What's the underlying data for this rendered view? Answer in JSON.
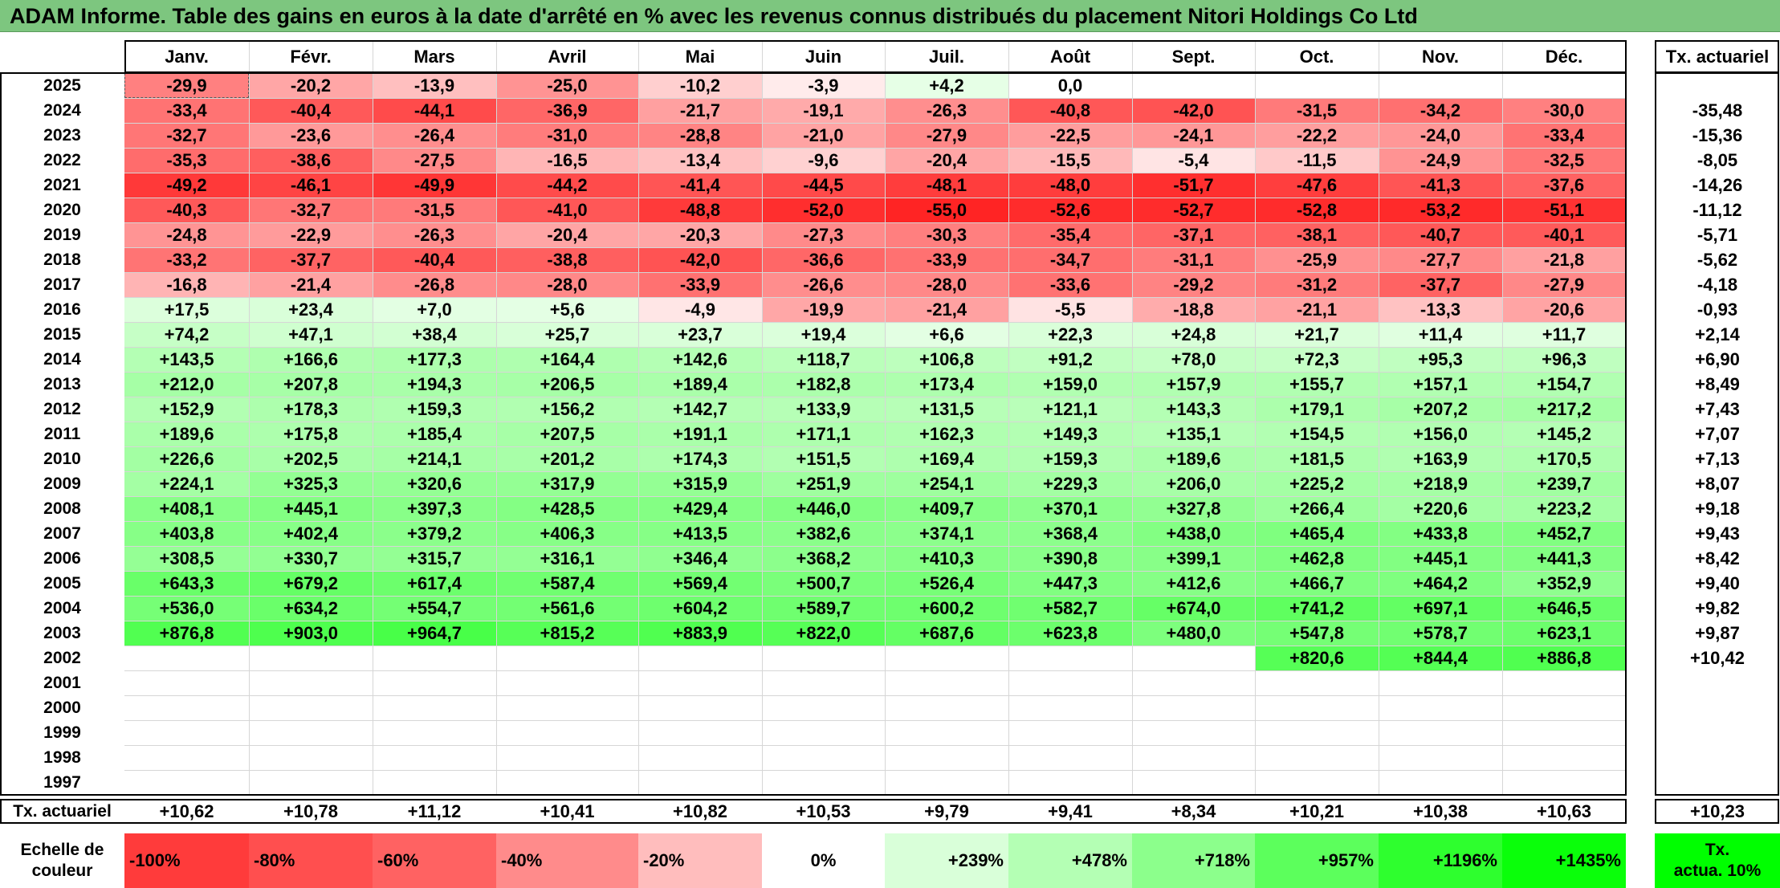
{
  "title": "ADAM Informe. Table des gains en euros à la date d'arrêté en % avec les revenus connus distribués du placement Nitori Holdings Co Ltd",
  "months": [
    "Janv.",
    "Févr.",
    "Mars",
    "Avril",
    "Mai",
    "Juin",
    "Juil.",
    "Août",
    "Sept.",
    "Oct.",
    "Nov.",
    "Déc."
  ],
  "annual_header": "Tx. actuariel",
  "rows": [
    {
      "year": "2025",
      "values": [
        "-29,9",
        "-20,2",
        "-13,9",
        "-25,0",
        "-10,2",
        "-3,9",
        "+4,2",
        "0,0",
        "",
        "",
        "",
        ""
      ],
      "annual": ""
    },
    {
      "year": "2024",
      "values": [
        "-33,4",
        "-40,4",
        "-44,1",
        "-36,9",
        "-21,7",
        "-19,1",
        "-26,3",
        "-40,8",
        "-42,0",
        "-31,5",
        "-34,2",
        "-30,0"
      ],
      "annual": "-35,48"
    },
    {
      "year": "2023",
      "values": [
        "-32,7",
        "-23,6",
        "-26,4",
        "-31,0",
        "-28,8",
        "-21,0",
        "-27,9",
        "-22,5",
        "-24,1",
        "-22,2",
        "-24,0",
        "-33,4"
      ],
      "annual": "-15,36"
    },
    {
      "year": "2022",
      "values": [
        "-35,3",
        "-38,6",
        "-27,5",
        "-16,5",
        "-13,4",
        "-9,6",
        "-20,4",
        "-15,5",
        "-5,4",
        "-11,5",
        "-24,9",
        "-32,5"
      ],
      "annual": "-8,05"
    },
    {
      "year": "2021",
      "values": [
        "-49,2",
        "-46,1",
        "-49,9",
        "-44,2",
        "-41,4",
        "-44,5",
        "-48,1",
        "-48,0",
        "-51,7",
        "-47,6",
        "-41,3",
        "-37,6"
      ],
      "annual": "-14,26"
    },
    {
      "year": "2020",
      "values": [
        "-40,3",
        "-32,7",
        "-31,5",
        "-41,0",
        "-48,8",
        "-52,0",
        "-55,0",
        "-52,6",
        "-52,7",
        "-52,8",
        "-53,2",
        "-51,1"
      ],
      "annual": "-11,12"
    },
    {
      "year": "2019",
      "values": [
        "-24,8",
        "-22,9",
        "-26,3",
        "-20,4",
        "-20,3",
        "-27,3",
        "-30,3",
        "-35,4",
        "-37,1",
        "-38,1",
        "-40,7",
        "-40,1"
      ],
      "annual": "-5,71"
    },
    {
      "year": "2018",
      "values": [
        "-33,2",
        "-37,7",
        "-40,4",
        "-38,8",
        "-42,0",
        "-36,6",
        "-33,9",
        "-34,7",
        "-31,1",
        "-25,9",
        "-27,7",
        "-21,8"
      ],
      "annual": "-5,62"
    },
    {
      "year": "2017",
      "values": [
        "-16,8",
        "-21,4",
        "-26,8",
        "-28,0",
        "-33,9",
        "-26,6",
        "-28,0",
        "-33,6",
        "-29,2",
        "-31,2",
        "-37,7",
        "-27,9"
      ],
      "annual": "-4,18"
    },
    {
      "year": "2016",
      "values": [
        "+17,5",
        "+23,4",
        "+7,0",
        "+5,6",
        "-4,9",
        "-19,9",
        "-21,4",
        "-5,5",
        "-18,8",
        "-21,1",
        "-13,3",
        "-20,6"
      ],
      "annual": "-0,93"
    },
    {
      "year": "2015",
      "values": [
        "+74,2",
        "+47,1",
        "+38,4",
        "+25,7",
        "+23,7",
        "+19,4",
        "+6,6",
        "+22,3",
        "+24,8",
        "+21,7",
        "+11,4",
        "+11,7"
      ],
      "annual": "+2,14"
    },
    {
      "year": "2014",
      "values": [
        "+143,5",
        "+166,6",
        "+177,3",
        "+164,4",
        "+142,6",
        "+118,7",
        "+106,8",
        "+91,2",
        "+78,0",
        "+72,3",
        "+95,3",
        "+96,3"
      ],
      "annual": "+6,90"
    },
    {
      "year": "2013",
      "values": [
        "+212,0",
        "+207,8",
        "+194,3",
        "+206,5",
        "+189,4",
        "+182,8",
        "+173,4",
        "+159,0",
        "+157,9",
        "+155,7",
        "+157,1",
        "+154,7"
      ],
      "annual": "+8,49"
    },
    {
      "year": "2012",
      "values": [
        "+152,9",
        "+178,3",
        "+159,3",
        "+156,2",
        "+142,7",
        "+133,9",
        "+131,5",
        "+121,1",
        "+143,3",
        "+179,1",
        "+207,2",
        "+217,2"
      ],
      "annual": "+7,43"
    },
    {
      "year": "2011",
      "values": [
        "+189,6",
        "+175,8",
        "+185,4",
        "+207,5",
        "+191,1",
        "+171,1",
        "+162,3",
        "+149,3",
        "+135,1",
        "+154,5",
        "+156,0",
        "+145,2"
      ],
      "annual": "+7,07"
    },
    {
      "year": "2010",
      "values": [
        "+226,6",
        "+202,5",
        "+214,1",
        "+201,2",
        "+174,3",
        "+151,5",
        "+169,4",
        "+159,3",
        "+189,6",
        "+181,5",
        "+163,9",
        "+170,5"
      ],
      "annual": "+7,13"
    },
    {
      "year": "2009",
      "values": [
        "+224,1",
        "+325,3",
        "+320,6",
        "+317,9",
        "+315,9",
        "+251,9",
        "+254,1",
        "+229,3",
        "+206,0",
        "+225,2",
        "+218,9",
        "+239,7"
      ],
      "annual": "+8,07"
    },
    {
      "year": "2008",
      "values": [
        "+408,1",
        "+445,1",
        "+397,3",
        "+428,5",
        "+429,4",
        "+446,0",
        "+409,7",
        "+370,1",
        "+327,8",
        "+266,4",
        "+220,6",
        "+223,2"
      ],
      "annual": "+9,18"
    },
    {
      "year": "2007",
      "values": [
        "+403,8",
        "+402,4",
        "+379,2",
        "+406,3",
        "+413,5",
        "+382,6",
        "+374,1",
        "+368,4",
        "+438,0",
        "+465,4",
        "+433,8",
        "+452,7"
      ],
      "annual": "+9,43"
    },
    {
      "year": "2006",
      "values": [
        "+308,5",
        "+330,7",
        "+315,7",
        "+316,1",
        "+346,4",
        "+368,2",
        "+410,3",
        "+390,8",
        "+399,1",
        "+462,8",
        "+445,1",
        "+441,3"
      ],
      "annual": "+8,42"
    },
    {
      "year": "2005",
      "values": [
        "+643,3",
        "+679,2",
        "+617,4",
        "+587,4",
        "+569,4",
        "+500,7",
        "+526,4",
        "+447,3",
        "+412,6",
        "+466,7",
        "+464,2",
        "+352,9"
      ],
      "annual": "+9,40"
    },
    {
      "year": "2004",
      "values": [
        "+536,0",
        "+634,2",
        "+554,7",
        "+561,6",
        "+604,2",
        "+589,7",
        "+600,2",
        "+582,7",
        "+674,0",
        "+741,2",
        "+697,1",
        "+646,5"
      ],
      "annual": "+9,82"
    },
    {
      "year": "2003",
      "values": [
        "+876,8",
        "+903,0",
        "+964,7",
        "+815,2",
        "+883,9",
        "+822,0",
        "+687,6",
        "+623,8",
        "+480,0",
        "+547,8",
        "+578,7",
        "+623,1"
      ],
      "annual": "+9,87"
    },
    {
      "year": "2002",
      "values": [
        "",
        "",
        "",
        "",
        "",
        "",
        "",
        "",
        "",
        "+820,6",
        "+844,4",
        "+886,8"
      ],
      "annual": "+10,42"
    },
    {
      "year": "2001",
      "values": [
        "",
        "",
        "",
        "",
        "",
        "",
        "",
        "",
        "",
        "",
        "",
        ""
      ],
      "annual": ""
    },
    {
      "year": "2000",
      "values": [
        "",
        "",
        "",
        "",
        "",
        "",
        "",
        "",
        "",
        "",
        "",
        ""
      ],
      "annual": ""
    },
    {
      "year": "1999",
      "values": [
        "",
        "",
        "",
        "",
        "",
        "",
        "",
        "",
        "",
        "",
        "",
        ""
      ],
      "annual": ""
    },
    {
      "year": "1998",
      "values": [
        "",
        "",
        "",
        "",
        "",
        "",
        "",
        "",
        "",
        "",
        "",
        ""
      ],
      "annual": ""
    },
    {
      "year": "1997",
      "values": [
        "",
        "",
        "",
        "",
        "",
        "",
        "",
        "",
        "",
        "",
        "",
        ""
      ],
      "annual": ""
    }
  ],
  "footer": {
    "label": "Tx. actuariel",
    "values": [
      "+10,62",
      "+10,78",
      "+11,12",
      "+10,41",
      "+10,82",
      "+10,53",
      "+9,79",
      "+9,41",
      "+8,34",
      "+10,21",
      "+10,38",
      "+10,63"
    ],
    "annual": "+10,23"
  },
  "scale": {
    "label_line1": "Echelle de",
    "label_line2": "couleur",
    "items": [
      "-100%",
      "-80%",
      "-60%",
      "-40%",
      "-20%",
      "0%",
      "+239%",
      "+478%",
      "+718%",
      "+957%",
      "+1196%",
      "+1435%"
    ],
    "annual_line1": "Tx.",
    "annual_line2": "actua. 10%"
  },
  "colors": {
    "title_bg": "#7dc67f",
    "negative_max": "#ff0000",
    "positive_max": "#00ff00",
    "neutral": "#ffffff",
    "border": "#000000"
  },
  "color_scale_max_positive": 1435
}
